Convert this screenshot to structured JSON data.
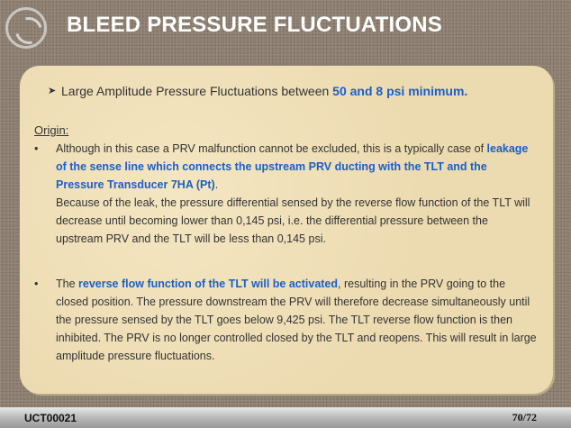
{
  "header": {
    "title": "BLEED PRESSURE FLUCTUATIONS",
    "logo": "company-swirl-logo"
  },
  "bullet1": {
    "text": "Large Amplitude Pressure Fluctuations between ",
    "highlight": "50 and 8 psi minimum."
  },
  "origin_label": "Origin:",
  "para1": {
    "t1": "Although in this case a PRV malfunction cannot be excluded, this is a typically case of ",
    "h1": "leakage of the sense line which connects the upstream PRV ducting with the TLT and the Pressure Transducer 7HA (Pt)",
    "t2": ".",
    "t3": "Because of the leak, the pressure differential sensed by the reverse flow function of the TLT will decrease until becoming lower than 0,145 psi, i.e. the differential pressure between the upstream PRV and the TLT will be less than 0,145 psi."
  },
  "para2": {
    "t1": "The ",
    "h1": "reverse flow function of the TLT will be activated",
    "t2": ", resulting in the PRV going to the closed position.  The pressure downstream the PRV will therefore decrease simultaneously until the pressure sensed by the TLT goes below 9,425 psi.  The TLT reverse flow function is then inhibited.  The PRV is no longer controlled closed by the TLT and reopens.  This will result in large amplitude pressure fluctuations."
  },
  "footer": {
    "code": "UCT00021",
    "page": "70/72"
  },
  "colors": {
    "highlight": "#1a5fc8",
    "title": "#ffffff"
  }
}
